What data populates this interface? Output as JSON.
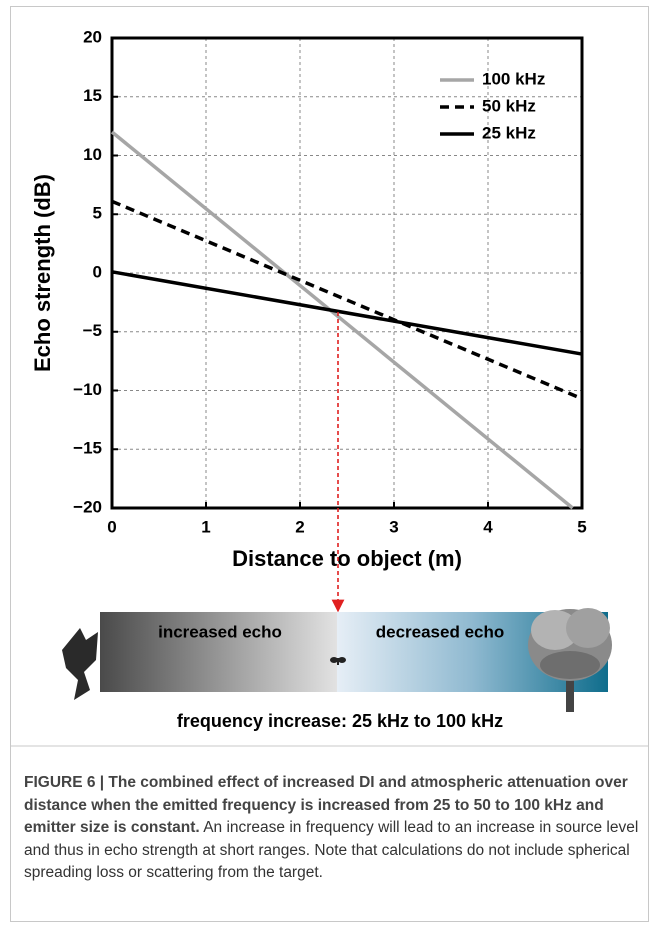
{
  "chart_data": {
    "type": "line",
    "xlabel": "Distance to object (m)",
    "ylabel": "Echo strength (dB)",
    "xlim": [
      0,
      5
    ],
    "ylim": [
      -20,
      20
    ],
    "xticks": [
      0,
      1,
      2,
      3,
      4,
      5
    ],
    "yticks": [
      {
        "value": -20,
        "label": "−20"
      },
      {
        "value": -15,
        "label": "−15"
      },
      {
        "value": -10,
        "label": "−10"
      },
      {
        "value": -5,
        "label": "−5"
      },
      0,
      5,
      10,
      15,
      20
    ],
    "grid": true,
    "legend": "upper right",
    "series": [
      {
        "name": "100 kHz",
        "color": "#a6a6a6",
        "linestyle": "solid",
        "x": [
          0,
          4.9
        ],
        "values": [
          12,
          -20
        ]
      },
      {
        "name": "50 kHz",
        "color": "#000000",
        "linestyle": "dashed",
        "x": [
          0,
          5
        ],
        "values": [
          6.1,
          -10.7
        ]
      },
      {
        "name": "25 kHz",
        "color": "#000000",
        "linestyle": "solid",
        "x": [
          0,
          5
        ],
        "values": [
          0.1,
          -6.9
        ]
      }
    ]
  },
  "scale_bar": {
    "left_label": "increased echo",
    "right_label": "decreased echo",
    "description": "frequency increase: 25 kHz to 100 kHz"
  },
  "caption": {
    "label": "FIGURE 6 | The combined effect of increased DI and atmospheric attenuation over distance when the emitted frequency is increased from 25 to 50 to 100 kHz and emitter size is constant.",
    "text": "An increase in frequency will lead to an increase in source level and thus in echo strength at short ranges. Note that calculations do not include spherical spreading loss or scattering from the target."
  }
}
